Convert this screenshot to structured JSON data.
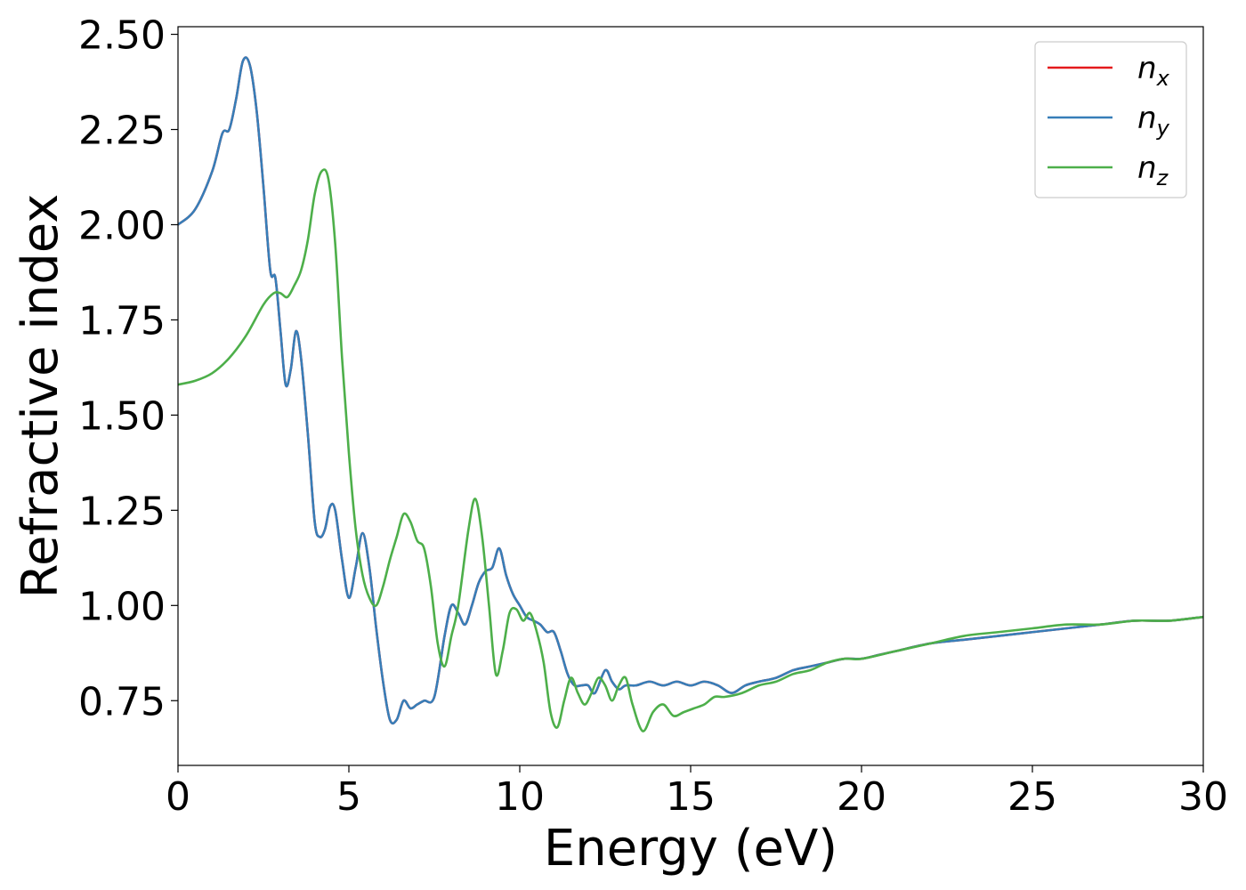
{
  "chart_data": {
    "type": "line",
    "title": "",
    "xlabel": "Energy (eV)",
    "ylabel": "Refractive index",
    "xlim": [
      0,
      30
    ],
    "ylim": [
      0.58,
      2.52
    ],
    "xticks": [
      0,
      5,
      10,
      15,
      20,
      25,
      30
    ],
    "xtick_labels": [
      "0",
      "5",
      "10",
      "15",
      "20",
      "25",
      "30"
    ],
    "yticks": [
      0.75,
      1.0,
      1.25,
      1.5,
      1.75,
      2.0,
      2.25,
      2.5
    ],
    "ytick_labels": [
      "0.75",
      "1.00",
      "1.25",
      "1.50",
      "1.75",
      "2.00",
      "2.25",
      "2.50"
    ],
    "grid": false,
    "legend_position": "top-right",
    "series": [
      {
        "name": "n_x",
        "label_base": "n",
        "label_sub": "x",
        "color": "#e41a1c",
        "x": [
          0,
          0.5,
          1.0,
          1.3,
          1.5,
          1.7,
          1.9,
          2.1,
          2.3,
          2.5,
          2.7,
          2.85,
          3.0,
          3.15,
          3.3,
          3.45,
          3.6,
          3.8,
          4.0,
          4.15,
          4.3,
          4.45,
          4.6,
          4.8,
          5.0,
          5.2,
          5.4,
          5.6,
          5.8,
          6.0,
          6.2,
          6.4,
          6.6,
          6.8,
          7.0,
          7.2,
          7.5,
          7.8,
          8.0,
          8.2,
          8.4,
          8.6,
          8.8,
          9.0,
          9.2,
          9.4,
          9.6,
          9.8,
          10.0,
          10.2,
          10.4,
          10.6,
          10.8,
          11.0,
          11.2,
          11.4,
          11.6,
          11.8,
          12.0,
          12.2,
          12.5,
          12.7,
          12.9,
          13.1,
          13.4,
          13.8,
          14.2,
          14.6,
          15.0,
          15.4,
          15.8,
          16.2,
          16.6,
          17.0,
          17.5,
          18.0,
          18.5,
          19.0,
          19.5,
          20.0,
          20.5,
          21.0,
          22.0,
          23.0,
          24.0,
          25.0,
          26.0,
          27.0,
          28.0,
          29.0,
          30.0
        ],
        "y": [
          2.0,
          2.04,
          2.14,
          2.24,
          2.25,
          2.33,
          2.43,
          2.42,
          2.3,
          2.1,
          1.88,
          1.86,
          1.72,
          1.58,
          1.62,
          1.72,
          1.65,
          1.45,
          1.22,
          1.18,
          1.2,
          1.26,
          1.25,
          1.12,
          1.02,
          1.1,
          1.19,
          1.1,
          0.94,
          0.8,
          0.7,
          0.7,
          0.75,
          0.73,
          0.74,
          0.75,
          0.76,
          0.92,
          1.0,
          0.98,
          0.95,
          1.0,
          1.06,
          1.09,
          1.1,
          1.15,
          1.08,
          1.03,
          1.0,
          0.97,
          0.96,
          0.95,
          0.93,
          0.93,
          0.88,
          0.82,
          0.79,
          0.79,
          0.79,
          0.77,
          0.83,
          0.8,
          0.78,
          0.79,
          0.79,
          0.8,
          0.79,
          0.8,
          0.79,
          0.8,
          0.79,
          0.77,
          0.79,
          0.8,
          0.81,
          0.83,
          0.84,
          0.85,
          0.86,
          0.86,
          0.87,
          0.88,
          0.9,
          0.91,
          0.92,
          0.93,
          0.94,
          0.95,
          0.96,
          0.96,
          0.97
        ]
      },
      {
        "name": "n_y",
        "label_base": "n",
        "label_sub": "y",
        "color": "#377eb8",
        "x": [
          0,
          0.5,
          1.0,
          1.3,
          1.5,
          1.7,
          1.9,
          2.1,
          2.3,
          2.5,
          2.7,
          2.85,
          3.0,
          3.15,
          3.3,
          3.45,
          3.6,
          3.8,
          4.0,
          4.15,
          4.3,
          4.45,
          4.6,
          4.8,
          5.0,
          5.2,
          5.4,
          5.6,
          5.8,
          6.0,
          6.2,
          6.4,
          6.6,
          6.8,
          7.0,
          7.2,
          7.5,
          7.8,
          8.0,
          8.2,
          8.4,
          8.6,
          8.8,
          9.0,
          9.2,
          9.4,
          9.6,
          9.8,
          10.0,
          10.2,
          10.4,
          10.6,
          10.8,
          11.0,
          11.2,
          11.4,
          11.6,
          11.8,
          12.0,
          12.2,
          12.5,
          12.7,
          12.9,
          13.1,
          13.4,
          13.8,
          14.2,
          14.6,
          15.0,
          15.4,
          15.8,
          16.2,
          16.6,
          17.0,
          17.5,
          18.0,
          18.5,
          19.0,
          19.5,
          20.0,
          20.5,
          21.0,
          22.0,
          23.0,
          24.0,
          25.0,
          26.0,
          27.0,
          28.0,
          29.0,
          30.0
        ],
        "y": [
          2.0,
          2.04,
          2.14,
          2.24,
          2.25,
          2.33,
          2.43,
          2.42,
          2.3,
          2.1,
          1.88,
          1.86,
          1.72,
          1.58,
          1.62,
          1.72,
          1.65,
          1.45,
          1.22,
          1.18,
          1.2,
          1.26,
          1.25,
          1.12,
          1.02,
          1.1,
          1.19,
          1.1,
          0.94,
          0.8,
          0.7,
          0.7,
          0.75,
          0.73,
          0.74,
          0.75,
          0.76,
          0.92,
          1.0,
          0.98,
          0.95,
          1.0,
          1.06,
          1.09,
          1.1,
          1.15,
          1.08,
          1.03,
          1.0,
          0.97,
          0.96,
          0.95,
          0.93,
          0.93,
          0.88,
          0.82,
          0.79,
          0.79,
          0.79,
          0.77,
          0.83,
          0.8,
          0.78,
          0.79,
          0.79,
          0.8,
          0.79,
          0.8,
          0.79,
          0.8,
          0.79,
          0.77,
          0.79,
          0.8,
          0.81,
          0.83,
          0.84,
          0.85,
          0.86,
          0.86,
          0.87,
          0.88,
          0.9,
          0.91,
          0.92,
          0.93,
          0.94,
          0.95,
          0.96,
          0.96,
          0.97
        ]
      },
      {
        "name": "n_z",
        "label_base": "n",
        "label_sub": "z",
        "color": "#4daf4a",
        "x": [
          0,
          0.5,
          1.0,
          1.5,
          2.0,
          2.5,
          2.8,
          3.0,
          3.2,
          3.4,
          3.6,
          3.8,
          4.0,
          4.2,
          4.4,
          4.6,
          4.8,
          5.0,
          5.2,
          5.4,
          5.6,
          5.8,
          6.0,
          6.2,
          6.4,
          6.6,
          6.8,
          7.0,
          7.2,
          7.4,
          7.6,
          7.8,
          8.0,
          8.2,
          8.5,
          8.7,
          8.9,
          9.1,
          9.3,
          9.5,
          9.7,
          9.9,
          10.1,
          10.3,
          10.5,
          10.7,
          10.9,
          11.1,
          11.3,
          11.5,
          11.7,
          11.9,
          12.1,
          12.3,
          12.5,
          12.7,
          12.9,
          13.1,
          13.3,
          13.6,
          13.9,
          14.2,
          14.5,
          14.8,
          15.1,
          15.4,
          15.7,
          16.0,
          16.5,
          17.0,
          17.5,
          18.0,
          18.5,
          19.0,
          19.5,
          20.0,
          21.0,
          22.0,
          23.0,
          24.0,
          25.0,
          26.0,
          27.0,
          28.0,
          29.0,
          30.0
        ],
        "y": [
          1.58,
          1.59,
          1.61,
          1.65,
          1.71,
          1.79,
          1.82,
          1.82,
          1.81,
          1.84,
          1.88,
          1.96,
          2.08,
          2.14,
          2.12,
          1.95,
          1.65,
          1.4,
          1.2,
          1.08,
          1.02,
          1.0,
          1.05,
          1.12,
          1.18,
          1.24,
          1.22,
          1.17,
          1.15,
          1.05,
          0.9,
          0.84,
          0.92,
          1.0,
          1.2,
          1.28,
          1.18,
          1.0,
          0.82,
          0.88,
          0.98,
          0.99,
          0.96,
          0.98,
          0.93,
          0.85,
          0.72,
          0.68,
          0.75,
          0.81,
          0.77,
          0.74,
          0.77,
          0.81,
          0.79,
          0.75,
          0.79,
          0.81,
          0.74,
          0.67,
          0.72,
          0.74,
          0.71,
          0.72,
          0.73,
          0.74,
          0.76,
          0.76,
          0.77,
          0.79,
          0.8,
          0.82,
          0.83,
          0.85,
          0.86,
          0.86,
          0.88,
          0.9,
          0.92,
          0.93,
          0.94,
          0.95,
          0.95,
          0.96,
          0.96,
          0.97
        ]
      }
    ]
  }
}
